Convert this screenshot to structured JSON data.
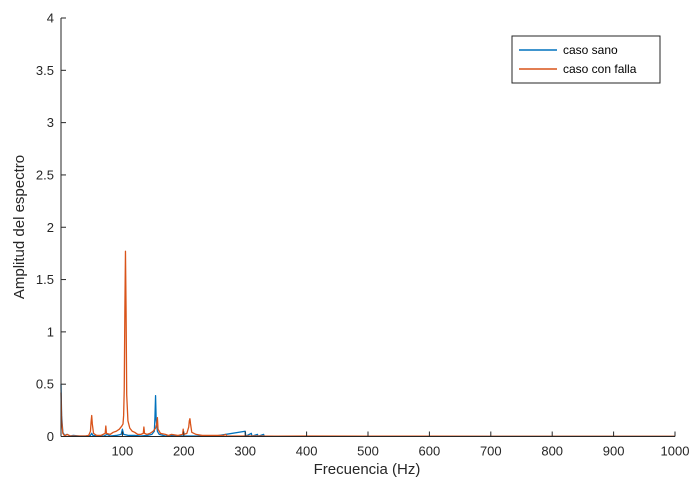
{
  "chart_data": {
    "type": "line",
    "title": "",
    "xlabel": "Frecuencia (Hz)",
    "ylabel": "Amplitud del espectro",
    "xlim": [
      0,
      1000
    ],
    "ylim": [
      0,
      4
    ],
    "x_ticks": [
      100,
      200,
      300,
      400,
      500,
      600,
      700,
      800,
      900,
      1000
    ],
    "x_tick_labels": [
      "100",
      "200",
      "300",
      "400",
      "500",
      "600",
      "700",
      "800",
      "900",
      "1000"
    ],
    "y_ticks": [
      0,
      0.5,
      1,
      1.5,
      2,
      2.5,
      3,
      3.5,
      4
    ],
    "y_tick_labels": [
      "0",
      "0.5",
      "1",
      "1.5",
      "2",
      "2.5",
      "3",
      "3.5",
      "4"
    ],
    "grid": false,
    "legend_position": "top-right",
    "series": [
      {
        "name": "caso sano",
        "color": "#0072BD",
        "points": [
          [
            0,
            0.5
          ],
          [
            1,
            0.2
          ],
          [
            3,
            0.04
          ],
          [
            6,
            0.01
          ],
          [
            10,
            0.02
          ],
          [
            15,
            0.005
          ],
          [
            20,
            0.01
          ],
          [
            30,
            0.005
          ],
          [
            40,
            0.005
          ],
          [
            48,
            0.01
          ],
          [
            50,
            0.03
          ],
          [
            52,
            0.01
          ],
          [
            60,
            0.005
          ],
          [
            70,
            0.005
          ],
          [
            75,
            0.02
          ],
          [
            80,
            0.005
          ],
          [
            90,
            0.01
          ],
          [
            98,
            0.02
          ],
          [
            100,
            0.07
          ],
          [
            102,
            0.02
          ],
          [
            110,
            0.01
          ],
          [
            120,
            0.01
          ],
          [
            130,
            0.005
          ],
          [
            140,
            0.01
          ],
          [
            148,
            0.02
          ],
          [
            152,
            0.05
          ],
          [
            153,
            0.18
          ],
          [
            154,
            0.39
          ],
          [
            155,
            0.16
          ],
          [
            157,
            0.05
          ],
          [
            160,
            0.02
          ],
          [
            170,
            0.005
          ],
          [
            180,
            0.01
          ],
          [
            200,
            0.005
          ],
          [
            220,
            0.005
          ],
          [
            250,
            0.003
          ],
          [
            300,
            0.05
          ],
          [
            301,
            0.003
          ],
          [
            310,
            0.03
          ],
          [
            311,
            0.003
          ],
          [
            320,
            0.02
          ],
          [
            321,
            0.003
          ],
          [
            330,
            0.02
          ],
          [
            331,
            0.003
          ],
          [
            400,
            0.002
          ],
          [
            500,
            0.002
          ],
          [
            600,
            0.001
          ],
          [
            700,
            0.001
          ],
          [
            800,
            0.001
          ],
          [
            900,
            0.001
          ],
          [
            1000,
            0.001
          ]
        ]
      },
      {
        "name": "caso con falla",
        "color": "#D95319",
        "points": [
          [
            0,
            0.42
          ],
          [
            1,
            0.15
          ],
          [
            3,
            0.03
          ],
          [
            6,
            0.005
          ],
          [
            10,
            0.02
          ],
          [
            15,
            0.005
          ],
          [
            20,
            0.005
          ],
          [
            30,
            0.005
          ],
          [
            40,
            0.005
          ],
          [
            45,
            0.01
          ],
          [
            48,
            0.05
          ],
          [
            49,
            0.14
          ],
          [
            50,
            0.2
          ],
          [
            51,
            0.12
          ],
          [
            53,
            0.03
          ],
          [
            58,
            0.01
          ],
          [
            65,
            0.01
          ],
          [
            72,
            0.03
          ],
          [
            73,
            0.1
          ],
          [
            74,
            0.03
          ],
          [
            80,
            0.02
          ],
          [
            85,
            0.04
          ],
          [
            90,
            0.05
          ],
          [
            95,
            0.07
          ],
          [
            99,
            0.1
          ],
          [
            101,
            0.12
          ],
          [
            102,
            0.2
          ],
          [
            103,
            0.45
          ],
          [
            104,
            1.2
          ],
          [
            105,
            1.77
          ],
          [
            106,
            1.2
          ],
          [
            107,
            0.4
          ],
          [
            109,
            0.15
          ],
          [
            112,
            0.08
          ],
          [
            116,
            0.05
          ],
          [
            120,
            0.04
          ],
          [
            125,
            0.02
          ],
          [
            130,
            0.02
          ],
          [
            134,
            0.03
          ],
          [
            135,
            0.09
          ],
          [
            136,
            0.03
          ],
          [
            140,
            0.02
          ],
          [
            145,
            0.03
          ],
          [
            150,
            0.05
          ],
          [
            154,
            0.08
          ],
          [
            156,
            0.12
          ],
          [
            157,
            0.18
          ],
          [
            158,
            0.07
          ],
          [
            162,
            0.03
          ],
          [
            170,
            0.02
          ],
          [
            175,
            0.01
          ],
          [
            180,
            0.02
          ],
          [
            190,
            0.01
          ],
          [
            198,
            0.02
          ],
          [
            199,
            0.07
          ],
          [
            200,
            0.02
          ],
          [
            205,
            0.03
          ],
          [
            208,
            0.09
          ],
          [
            209,
            0.15
          ],
          [
            210,
            0.17
          ],
          [
            211,
            0.12
          ],
          [
            213,
            0.04
          ],
          [
            220,
            0.02
          ],
          [
            230,
            0.01
          ],
          [
            250,
            0.01
          ],
          [
            265,
            0.01
          ],
          [
            268,
            0.02
          ],
          [
            270,
            0.005
          ],
          [
            300,
            0.005
          ],
          [
            350,
            0.003
          ],
          [
            400,
            0.005
          ],
          [
            500,
            0.003
          ],
          [
            600,
            0.003
          ],
          [
            700,
            0.002
          ],
          [
            800,
            0.002
          ],
          [
            900,
            0.002
          ],
          [
            1000,
            0.002
          ]
        ]
      }
    ]
  }
}
